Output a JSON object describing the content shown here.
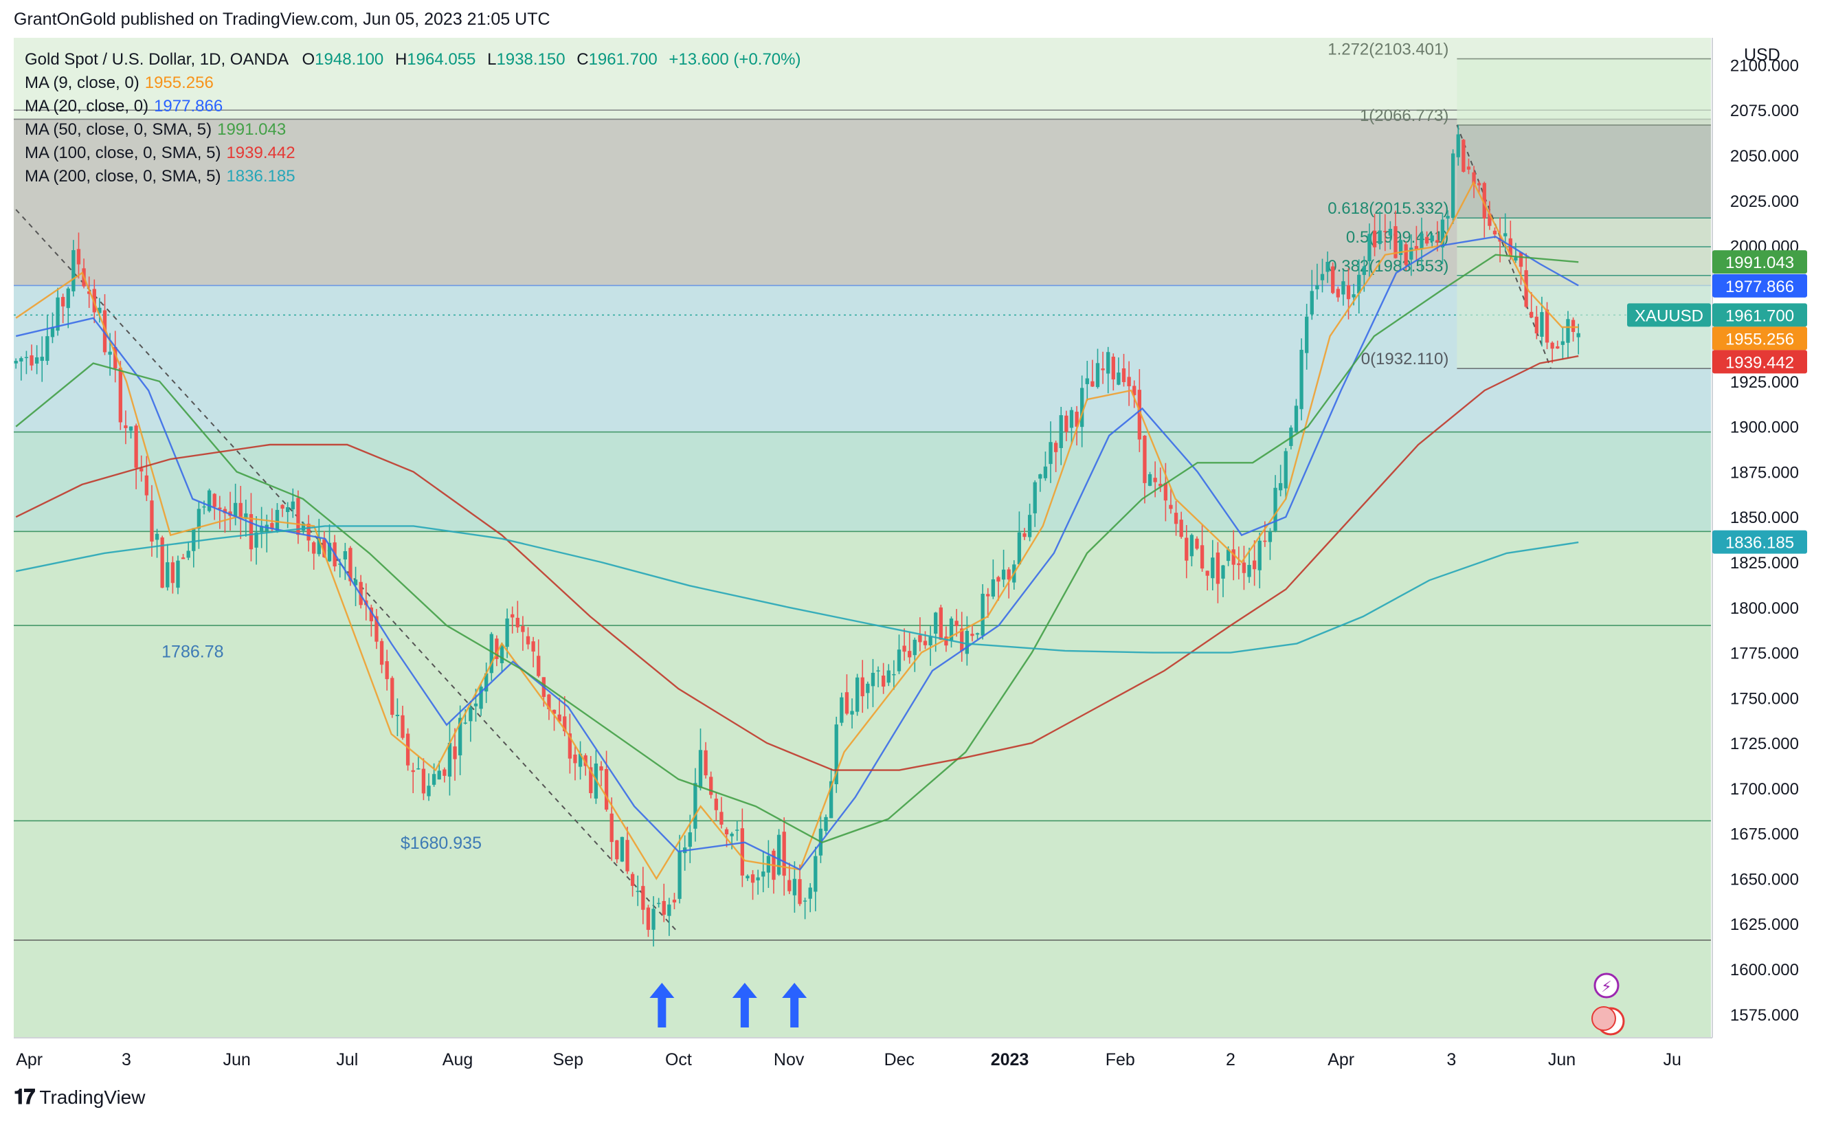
{
  "header": {
    "publisher": "GrantOnGold published on TradingView.com, Jun 05, 2023 21:05 UTC"
  },
  "footer": {
    "brand": "TradingView"
  },
  "legend": {
    "symbol": "Gold Spot / U.S. Dollar, 1D, OANDA",
    "o_label": "O",
    "o": "1948.100",
    "h_label": "H",
    "h": "1964.055",
    "l_label": "L",
    "l": "1938.150",
    "c_label": "C",
    "c": "1961.700",
    "change": "+13.600 (+0.70%)",
    "ma": [
      {
        "label": "MA (9, close, 0)",
        "value": "1955.256",
        "color": "#f7931a"
      },
      {
        "label": "MA (20, close, 0)",
        "value": "1977.866",
        "color": "#2962ff"
      },
      {
        "label": "MA (50, close, 0, SMA, 5)",
        "value": "1991.043",
        "color": "#43a047"
      },
      {
        "label": "MA (100, close, 0, SMA, 5)",
        "value": "1939.442",
        "color": "#e53935"
      },
      {
        "label": "MA (200, close, 0, SMA, 5)",
        "value": "1836.185",
        "color": "#26a6b8"
      }
    ]
  },
  "chart_data": {
    "type": "candlestick",
    "currency": "USD",
    "ylim": [
      1562,
      2115
    ],
    "yticks": [
      "1575.000",
      "1600.000",
      "1625.000",
      "1650.000",
      "1675.000",
      "1700.000",
      "1725.000",
      "1750.000",
      "1775.000",
      "1800.000",
      "1825.000",
      "1850.000",
      "1875.000",
      "1900.000",
      "1925.000",
      "2000.000",
      "2025.000",
      "2050.000",
      "2075.000",
      "2100.000"
    ],
    "xticks": [
      {
        "label": "Apr",
        "t": 0
      },
      {
        "label": "3",
        "t": 1
      },
      {
        "label": "Jun",
        "t": 2
      },
      {
        "label": "Jul",
        "t": 3
      },
      {
        "label": "Aug",
        "t": 4
      },
      {
        "label": "Sep",
        "t": 5
      },
      {
        "label": "Oct",
        "t": 6
      },
      {
        "label": "Nov",
        "t": 7
      },
      {
        "label": "Dec",
        "t": 8
      },
      {
        "label": "2023",
        "t": 9
      },
      {
        "label": "Feb",
        "t": 10
      },
      {
        "label": "2",
        "t": 11
      },
      {
        "label": "Apr",
        "t": 12
      },
      {
        "label": "3",
        "t": 13
      },
      {
        "label": "Jun",
        "t": 14
      },
      {
        "label": "Ju",
        "t": 15
      }
    ],
    "price_path": [
      [
        0,
        1935
      ],
      [
        0.35,
        1955
      ],
      [
        0.55,
        1995
      ],
      [
        0.75,
        1960
      ],
      [
        1.0,
        1900
      ],
      [
        1.35,
        1815
      ],
      [
        1.6,
        1845
      ],
      [
        1.8,
        1860
      ],
      [
        2.1,
        1840
      ],
      [
        2.4,
        1855
      ],
      [
        2.7,
        1840
      ],
      [
        3.0,
        1820
      ],
      [
        3.2,
        1795
      ],
      [
        3.5,
        1720
      ],
      [
        3.75,
        1700
      ],
      [
        4.0,
        1730
      ],
      [
        4.3,
        1775
      ],
      [
        4.55,
        1795
      ],
      [
        4.75,
        1760
      ],
      [
        5.0,
        1720
      ],
      [
        5.3,
        1700
      ],
      [
        5.55,
        1650
      ],
      [
        5.8,
        1625
      ],
      [
        6.05,
        1660
      ],
      [
        6.2,
        1715
      ],
      [
        6.45,
        1680
      ],
      [
        6.7,
        1640
      ],
      [
        6.9,
        1665
      ],
      [
        7.1,
        1635
      ],
      [
        7.3,
        1680
      ],
      [
        7.5,
        1750
      ],
      [
        7.8,
        1755
      ],
      [
        8.1,
        1780
      ],
      [
        8.4,
        1790
      ],
      [
        8.6,
        1785
      ],
      [
        8.85,
        1805
      ],
      [
        9.15,
        1840
      ],
      [
        9.35,
        1890
      ],
      [
        9.6,
        1910
      ],
      [
        9.85,
        1930
      ],
      [
        10.05,
        1935
      ],
      [
        10.25,
        1870
      ],
      [
        10.55,
        1840
      ],
      [
        10.85,
        1820
      ],
      [
        11.05,
        1830
      ],
      [
        11.2,
        1825
      ],
      [
        11.4,
        1860
      ],
      [
        11.6,
        1920
      ],
      [
        11.8,
        1990
      ],
      [
        12.05,
        1975
      ],
      [
        12.3,
        2010
      ],
      [
        12.6,
        1995
      ],
      [
        12.9,
        2000
      ],
      [
        13.05,
        2055
      ],
      [
        13.25,
        2030
      ],
      [
        13.5,
        2000
      ],
      [
        13.8,
        1955
      ],
      [
        14.0,
        1942
      ],
      [
        14.15,
        1962
      ]
    ],
    "ma_series": [
      {
        "name": "MA 9",
        "color": "#f0a030",
        "points": [
          [
            0,
            1960
          ],
          [
            0.6,
            1985
          ],
          [
            1.0,
            1925
          ],
          [
            1.4,
            1840
          ],
          [
            2,
            1850
          ],
          [
            2.7,
            1845
          ],
          [
            3.4,
            1730
          ],
          [
            3.8,
            1710
          ],
          [
            4.4,
            1780
          ],
          [
            5.0,
            1730
          ],
          [
            5.8,
            1650
          ],
          [
            6.2,
            1690
          ],
          [
            6.6,
            1660
          ],
          [
            7.1,
            1655
          ],
          [
            7.5,
            1720
          ],
          [
            8.2,
            1775
          ],
          [
            8.8,
            1795
          ],
          [
            9.3,
            1845
          ],
          [
            9.7,
            1915
          ],
          [
            10.1,
            1920
          ],
          [
            10.5,
            1860
          ],
          [
            11.1,
            1825
          ],
          [
            11.5,
            1860
          ],
          [
            11.9,
            1950
          ],
          [
            12.4,
            1995
          ],
          [
            12.9,
            2000
          ],
          [
            13.2,
            2035
          ],
          [
            13.7,
            1975
          ],
          [
            14.0,
            1955
          ],
          [
            14.15,
            1955
          ]
        ]
      },
      {
        "name": "MA 20",
        "color": "#3a6be8",
        "points": [
          [
            0,
            1950
          ],
          [
            0.7,
            1960
          ],
          [
            1.2,
            1920
          ],
          [
            1.6,
            1860
          ],
          [
            2.2,
            1845
          ],
          [
            2.8,
            1838
          ],
          [
            3.4,
            1780
          ],
          [
            3.9,
            1735
          ],
          [
            4.5,
            1770
          ],
          [
            5.0,
            1745
          ],
          [
            5.6,
            1690
          ],
          [
            6.0,
            1665
          ],
          [
            6.6,
            1670
          ],
          [
            7.1,
            1655
          ],
          [
            7.6,
            1695
          ],
          [
            8.3,
            1765
          ],
          [
            8.9,
            1790
          ],
          [
            9.4,
            1830
          ],
          [
            9.9,
            1895
          ],
          [
            10.2,
            1910
          ],
          [
            10.7,
            1875
          ],
          [
            11.1,
            1840
          ],
          [
            11.5,
            1850
          ],
          [
            12.0,
            1920
          ],
          [
            12.5,
            1985
          ],
          [
            12.9,
            2000
          ],
          [
            13.4,
            2005
          ],
          [
            13.8,
            1990
          ],
          [
            14.15,
            1978
          ]
        ]
      },
      {
        "name": "MA 50",
        "color": "#43a047",
        "points": [
          [
            0,
            1900
          ],
          [
            0.7,
            1935
          ],
          [
            1.3,
            1925
          ],
          [
            2.0,
            1875
          ],
          [
            2.6,
            1860
          ],
          [
            3.2,
            1830
          ],
          [
            3.9,
            1790
          ],
          [
            4.6,
            1765
          ],
          [
            5.3,
            1735
          ],
          [
            6.0,
            1705
          ],
          [
            6.7,
            1690
          ],
          [
            7.3,
            1670
          ],
          [
            7.9,
            1683
          ],
          [
            8.6,
            1720
          ],
          [
            9.2,
            1775
          ],
          [
            9.7,
            1830
          ],
          [
            10.2,
            1860
          ],
          [
            10.7,
            1880
          ],
          [
            11.2,
            1880
          ],
          [
            11.7,
            1900
          ],
          [
            12.3,
            1950
          ],
          [
            12.9,
            1975
          ],
          [
            13.4,
            1995
          ],
          [
            14.15,
            1991
          ]
        ]
      },
      {
        "name": "MA 100",
        "color": "#c0392b",
        "points": [
          [
            0,
            1850
          ],
          [
            0.6,
            1868
          ],
          [
            1.4,
            1882
          ],
          [
            2.3,
            1890
          ],
          [
            3.0,
            1890
          ],
          [
            3.6,
            1875
          ],
          [
            4.4,
            1840
          ],
          [
            5.2,
            1795
          ],
          [
            6.0,
            1755
          ],
          [
            6.8,
            1725
          ],
          [
            7.4,
            1710
          ],
          [
            8.0,
            1710
          ],
          [
            8.6,
            1717
          ],
          [
            9.2,
            1725
          ],
          [
            9.8,
            1745
          ],
          [
            10.4,
            1765
          ],
          [
            11.0,
            1790
          ],
          [
            11.5,
            1810
          ],
          [
            12.1,
            1850
          ],
          [
            12.7,
            1890
          ],
          [
            13.3,
            1920
          ],
          [
            13.8,
            1935
          ],
          [
            14.15,
            1939
          ]
        ]
      },
      {
        "name": "MA 200",
        "color": "#26a6b8",
        "points": [
          [
            0,
            1820
          ],
          [
            0.8,
            1830
          ],
          [
            1.8,
            1838
          ],
          [
            2.8,
            1845
          ],
          [
            3.6,
            1845
          ],
          [
            4.4,
            1838
          ],
          [
            5.3,
            1825
          ],
          [
            6.1,
            1812
          ],
          [
            7.0,
            1800
          ],
          [
            7.8,
            1790
          ],
          [
            8.6,
            1780
          ],
          [
            9.5,
            1776
          ],
          [
            10.3,
            1775
          ],
          [
            11.0,
            1775
          ],
          [
            11.6,
            1780
          ],
          [
            12.2,
            1795
          ],
          [
            12.8,
            1815
          ],
          [
            13.5,
            1830
          ],
          [
            14.15,
            1836
          ]
        ]
      }
    ],
    "horizontal_levels": [
      2075,
      2070,
      1978,
      1897,
      1842,
      1790,
      1682,
      1616
    ],
    "trendline": {
      "from": [
        0,
        2020
      ],
      "to": [
        6.0,
        1620
      ]
    },
    "fib": {
      "levels": [
        {
          "label": "1.272(2103.401)",
          "value": 2103.401
        },
        {
          "label": "1(2066.773)",
          "value": 2066.773
        },
        {
          "label": "0.618(2015.332)",
          "value": 2015.332
        },
        {
          "label": "0.5(1999.441)",
          "value": 1999.441
        },
        {
          "label": "0.382(1983.553)",
          "value": 1983.553
        },
        {
          "label": "0(1932.110)",
          "value": 1932.11
        }
      ],
      "t_start": 13.05
    },
    "annotations": [
      {
        "label": "1786.78",
        "t": 1.6,
        "value": 1786.78
      },
      {
        "label": "$1680.935",
        "t": 3.85,
        "value": 1680.935
      }
    ],
    "arrows_t": [
      5.85,
      6.6,
      7.05
    ],
    "price_labels": [
      {
        "text": "1991.043",
        "value": 1991.043,
        "color": "#43a047"
      },
      {
        "text": "1977.866",
        "value": 1977.866,
        "color": "#2962ff"
      },
      {
        "text": "XAUUSD",
        "value": 1961.7,
        "color": "#26a69a",
        "side": "left"
      },
      {
        "text": "1961.700",
        "value": 1961.7,
        "color": "#26a69a"
      },
      {
        "text": "1955.256",
        "value": 1955.256,
        "color": "#f7931a"
      },
      {
        "text": "1939.442",
        "value": 1939.442,
        "color": "#e53935"
      },
      {
        "text": "1836.185",
        "value": 1836.185,
        "color": "#26a6b8"
      }
    ],
    "colors": {
      "up": "#26a69a",
      "down": "#ef5350",
      "zone_top": "#c9cbc4",
      "zone_mid": "#c6e2e6",
      "zone_low": "#cfe9cd"
    }
  }
}
